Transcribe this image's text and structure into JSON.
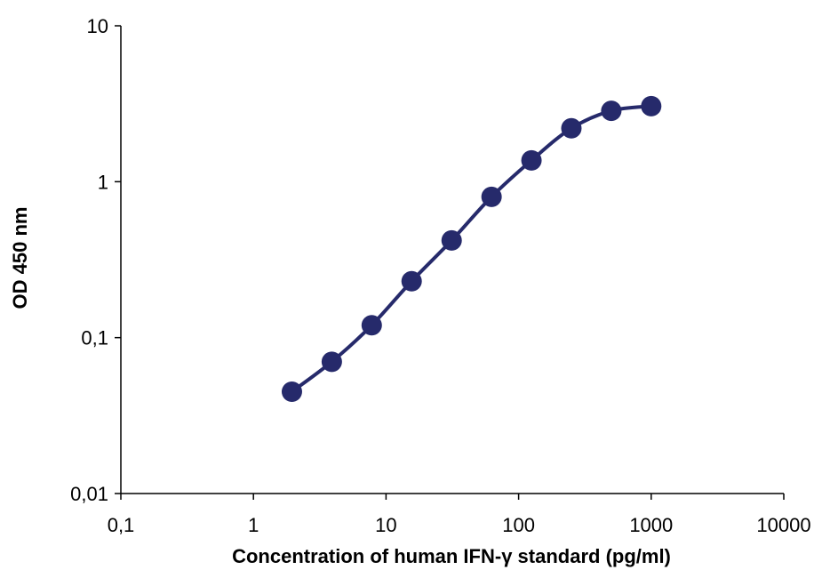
{
  "chart_data": {
    "type": "scatter",
    "title": "",
    "xlabel": "Concentration of human IFN-γ standard (pg/ml)",
    "ylabel": "OD 450 nm",
    "xscale": "log",
    "yscale": "log",
    "xlim": [
      0.1,
      10000
    ],
    "ylim": [
      0.01,
      10
    ],
    "xticks": [
      0.1,
      1,
      10,
      100,
      1000,
      10000
    ],
    "xtick_labels": [
      "0,1",
      "1",
      "10",
      "100",
      "1000",
      "10000"
    ],
    "yticks": [
      0.01,
      0.1,
      1,
      10
    ],
    "ytick_labels": [
      "0,01",
      "0,1",
      "1",
      "10"
    ],
    "grid": false,
    "legend": "none",
    "series": [
      {
        "color": "#262a6b",
        "line": "smooth",
        "x": [
          1.95,
          3.9,
          7.8,
          15.6,
          31.25,
          62.5,
          125,
          250,
          500,
          1000
        ],
        "y": [
          0.045,
          0.07,
          0.12,
          0.23,
          0.42,
          0.8,
          1.37,
          2.2,
          2.85,
          3.05
        ]
      }
    ]
  }
}
